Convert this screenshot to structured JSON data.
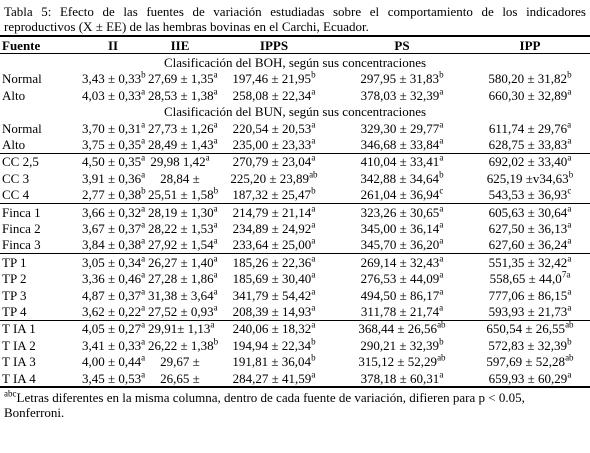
{
  "caption": "Tabla 5: Efecto de las fuentes de variación estudiadas sobre el comportamiento de los indicadores reproductivos (X ± EE) de las hembras bovinas en el Carchi, Ecuador.",
  "table": {
    "headers": [
      "Fuente",
      "II",
      "IIE",
      "IPPS",
      "PS",
      "IPP"
    ],
    "groups": [
      {
        "title": "Clasificación del BOH, según sus concentraciones",
        "rows": [
          [
            "Normal",
            {
              "text": "3,43 ± 0,33",
              "sup": "b"
            },
            {
              "text": "27,69 ± 1,35",
              "sup": "a"
            },
            {
              "text": "197,46 ± 21,95",
              "sup": "b"
            },
            {
              "text": "297,95 ± 31,83",
              "sup": "b"
            },
            {
              "text": "580,20 ± 31,82",
              "sup": "b"
            }
          ],
          [
            "Alto",
            {
              "text": "4,03 ± 0,33",
              "sup": "a"
            },
            {
              "text": "28,53 ± 1,38",
              "sup": "a"
            },
            {
              "text": "258,08 ± 22,34",
              "sup": "a"
            },
            {
              "text": "378,03 ± 32,39",
              "sup": "a"
            },
            {
              "text": "660,30 ± 32,89",
              "sup": "a"
            }
          ]
        ]
      },
      {
        "title": "Clasificación del BUN, según sus concentraciones",
        "rows": [
          [
            "Normal",
            {
              "text": "3,70 ± 0,31",
              "sup": "a"
            },
            {
              "text": "27,73 ± 1,26",
              "sup": "a"
            },
            {
              "text": "220,54 ± 20,53",
              "sup": "a"
            },
            {
              "text": "329,30 ± 29,77",
              "sup": "a"
            },
            {
              "text": "611,74 ± 29,76",
              "sup": "a"
            }
          ],
          [
            "Alto",
            {
              "text": "3,75 ± 0,35",
              "sup": "a"
            },
            {
              "text": "28,49 ± 1,43",
              "sup": "a"
            },
            {
              "text": "235,00 ± 23,33",
              "sup": "a"
            },
            {
              "text": "346,68 ± 33,84",
              "sup": "a"
            },
            {
              "text": "628,75 ± 33,83",
              "sup": "a"
            }
          ]
        ]
      },
      {
        "rows": [
          [
            "CC 2,5",
            {
              "text": "4,50 ± 0,35",
              "sup": "a"
            },
            {
              "text": "29,98 1,42",
              "sup": "a"
            },
            {
              "text": "270,79 ± 23,04",
              "sup": "a"
            },
            {
              "text": "410,04 ± 33,41",
              "sup": "a"
            },
            {
              "text": "692,02 ± 33,40",
              "sup": "a"
            }
          ],
          [
            "CC 3",
            {
              "text": "3,91 ± 0,36",
              "sup": "a"
            },
            "28,84 ±",
            {
              "text": "225,20 ± 23,89",
              "sup": "ab"
            },
            {
              "text": "342,88 ± 34,64",
              "sup": "b"
            },
            {
              "text": "625,19 ±v34,63",
              "sup": "b"
            }
          ],
          [
            "CC 4",
            {
              "text": "2,77 ± 0,38",
              "sup": "b"
            },
            {
              "text": "25,51 ± 1,58",
              "sup": "b"
            },
            {
              "text": "187,32 ± 25,47",
              "sup": "b"
            },
            {
              "text": "261,04 ± 36,94",
              "sup": "c"
            },
            {
              "text": "543,53 ± 36,93",
              "sup": "c"
            }
          ]
        ]
      },
      {
        "rows": [
          [
            "Finca 1",
            {
              "text": "3,66 ± 0,32",
              "sup": "a"
            },
            {
              "text": "28,19 ± 1,30",
              "sup": "a"
            },
            {
              "text": "214,79 ± 21,14",
              "sup": "a"
            },
            {
              "text": "323,26 ± 30,65",
              "sup": "a"
            },
            {
              "text": "605,63 ± 30,64",
              "sup": "a"
            }
          ],
          [
            "Finca 2",
            {
              "text": "3,67 ± 0,37",
              "sup": "a"
            },
            {
              "text": "28,22 ± 1,53",
              "sup": "a"
            },
            {
              "text": "234,89 ± 24,92",
              "sup": "a"
            },
            {
              "text": "345,00 ± 36,14",
              "sup": "a"
            },
            {
              "text": "627,50 ± 36,13",
              "sup": "a"
            }
          ],
          [
            "Finca 3",
            {
              "text": "3,84 ± 0,38",
              "sup": "a"
            },
            {
              "text": "27,92 ± 1,54",
              "sup": "a"
            },
            {
              "text": "233,64 ± 25,00",
              "sup": "a"
            },
            {
              "text": "345,70 ± 36,20",
              "sup": "a"
            },
            {
              "text": "627,60 ± 36,24",
              "sup": "a"
            }
          ]
        ]
      },
      {
        "rows": [
          [
            "TP 1",
            {
              "text": "3,05 ± 0,34",
              "sup": "a"
            },
            {
              "text": "26,27 ± 1,40",
              "sup": "a"
            },
            {
              "text": "185,26 ± 22,36",
              "sup": "a"
            },
            {
              "text": "269,14 ± 32,43",
              "sup": "a"
            },
            {
              "text": "551,35 ± 32,42",
              "sup": "a"
            }
          ],
          [
            "TP 2",
            {
              "text": "3,36 ± 0,46",
              "sup": "a"
            },
            {
              "text": "27,28 ± 1,86",
              "sup": "a"
            },
            {
              "text": "185,69 ± 30,40",
              "sup": "a"
            },
            {
              "text": "276,53 ± 44,09",
              "sup": "a"
            },
            {
              "text": "558,65 ± 44,0",
              "sup": "7a"
            }
          ],
          [
            "TP 3",
            {
              "text": "4,87 ± 0,37",
              "sup": "a"
            },
            {
              "text": "31,38 ± 3,64",
              "sup": "a"
            },
            {
              "text": "341,79 ± 54,42",
              "sup": "a"
            },
            {
              "text": "494,50 ± 86,17",
              "sup": "a"
            },
            {
              "text": "777,06 ± 86,15",
              "sup": "a"
            }
          ],
          [
            "TP 4",
            {
              "text": "3,62 ± 0,22",
              "sup": "a"
            },
            {
              "text": "27,52 ± 0,93",
              "sup": "a"
            },
            {
              "text": "208,39 ± 14,93",
              "sup": "a"
            },
            {
              "text": "311,78 ± 21,74",
              "sup": "a"
            },
            {
              "text": "593,93 ± 21,73",
              "sup": "a"
            }
          ]
        ]
      },
      {
        "rows": [
          [
            "T IA 1",
            {
              "text": "4,05 ± 0,27",
              "sup": "a"
            },
            {
              "text": "29,91± 1,13",
              "sup": "a"
            },
            {
              "text": "240,06 ± 18,32",
              "sup": "a"
            },
            {
              "text": "368,44 ± 26,56",
              "sup": "ab"
            },
            {
              "text": "650,54 ± 26,55",
              "sup": "ab"
            }
          ],
          [
            "T IA 2",
            {
              "text": "3,41 ± 0,33",
              "sup": "a"
            },
            {
              "text": "26,22 ± 1,38",
              "sup": "b"
            },
            {
              "text": "194,94 ± 22,34",
              "sup": "b"
            },
            {
              "text": "290,21 ± 32,39",
              "sup": "b"
            },
            {
              "text": "572,83 ± 32,39",
              "sup": "b"
            }
          ],
          [
            "T IA 3",
            {
              "text": "4,00 ± 0,44",
              "sup": "a"
            },
            "29,67 ±",
            {
              "text": "191,81 ± 36,04",
              "sup": "b"
            },
            {
              "text": "315,12 ± 52,29",
              "sup": "ab"
            },
            {
              "text": "597,69 ± 52,28",
              "sup": "ab"
            }
          ],
          [
            "T IA 4",
            {
              "text": "3,45 ± 0,53",
              "sup": "a"
            },
            "26,65 ±",
            {
              "text": "284,27 ± 41,59",
              "sup": "a"
            },
            {
              "text": "378,18 ± 60,31",
              "sup": "a"
            },
            {
              "text": "659,93 ± 60,29",
              "sup": "a"
            }
          ]
        ]
      }
    ]
  },
  "footnote": {
    "sup": "abc",
    "text": "Letras diferentes en la misma columna, dentro de cada fuente de variación, difieren para p < 0.05, Bonferroni."
  }
}
